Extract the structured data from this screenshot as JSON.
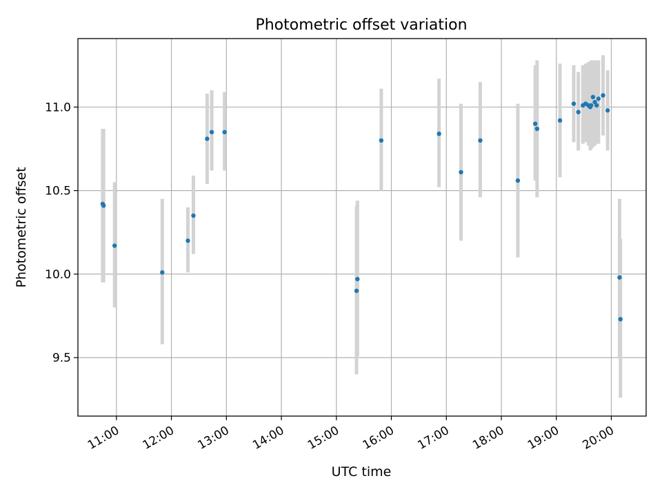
{
  "chart_data": {
    "type": "scatter",
    "title": "Photometric offset variation",
    "xlabel": "UTC time",
    "ylabel": "Photometric offset",
    "xlim": [
      "10:18",
      "20:38"
    ],
    "ylim": [
      9.15,
      11.41
    ],
    "grid": true,
    "x_ticks": [
      "11:00",
      "12:00",
      "13:00",
      "14:00",
      "15:00",
      "16:00",
      "17:00",
      "18:00",
      "19:00",
      "20:00"
    ],
    "y_ticks": [
      9.5,
      10.0,
      10.5,
      11.0
    ],
    "y_tick_labels": [
      "9.5",
      "10.0",
      "10.5",
      "11.0"
    ],
    "point_color": "#1f77b4",
    "errorbar_color": "#d3d3d3",
    "points": [
      {
        "x": "10:45",
        "y": 10.42,
        "ylo": 9.95,
        "yhi": 10.87
      },
      {
        "x": "10:46",
        "y": 10.41,
        "ylo": 9.95,
        "yhi": 10.87
      },
      {
        "x": "10:58",
        "y": 10.17,
        "ylo": 9.8,
        "yhi": 10.55
      },
      {
        "x": "11:50",
        "y": 10.01,
        "ylo": 9.58,
        "yhi": 10.45
      },
      {
        "x": "12:18",
        "y": 10.2,
        "ylo": 10.01,
        "yhi": 10.4
      },
      {
        "x": "12:24",
        "y": 10.35,
        "ylo": 10.12,
        "yhi": 10.59
      },
      {
        "x": "12:39",
        "y": 10.81,
        "ylo": 10.54,
        "yhi": 11.08
      },
      {
        "x": "12:44",
        "y": 10.85,
        "ylo": 10.62,
        "yhi": 11.1
      },
      {
        "x": "12:58",
        "y": 10.85,
        "ylo": 10.62,
        "yhi": 11.09
      },
      {
        "x": "15:22",
        "y": 9.9,
        "ylo": 9.4,
        "yhi": 10.41
      },
      {
        "x": "15:23",
        "y": 9.97,
        "ylo": 9.51,
        "yhi": 10.44
      },
      {
        "x": "15:49",
        "y": 10.8,
        "ylo": 10.5,
        "yhi": 11.11
      },
      {
        "x": "16:52",
        "y": 10.84,
        "ylo": 10.52,
        "yhi": 11.17
      },
      {
        "x": "17:16",
        "y": 10.61,
        "ylo": 10.2,
        "yhi": 11.02
      },
      {
        "x": "17:37",
        "y": 10.8,
        "ylo": 10.46,
        "yhi": 11.15
      },
      {
        "x": "18:18",
        "y": 10.56,
        "ylo": 10.1,
        "yhi": 11.02
      },
      {
        "x": "18:37",
        "y": 10.9,
        "ylo": 10.56,
        "yhi": 11.25
      },
      {
        "x": "18:39",
        "y": 10.87,
        "ylo": 10.46,
        "yhi": 11.28
      },
      {
        "x": "19:04",
        "y": 10.92,
        "ylo": 10.58,
        "yhi": 11.26
      },
      {
        "x": "19:19",
        "y": 11.02,
        "ylo": 10.79,
        "yhi": 11.25
      },
      {
        "x": "19:24",
        "y": 10.97,
        "ylo": 10.74,
        "yhi": 11.21
      },
      {
        "x": "19:29",
        "y": 11.01,
        "ylo": 10.78,
        "yhi": 11.25
      },
      {
        "x": "19:32",
        "y": 11.02,
        "ylo": 10.79,
        "yhi": 11.26
      },
      {
        "x": "19:35",
        "y": 11.01,
        "ylo": 10.77,
        "yhi": 11.27
      },
      {
        "x": "19:37",
        "y": 11.0,
        "ylo": 10.74,
        "yhi": 11.25
      },
      {
        "x": "19:38",
        "y": 11.01,
        "ylo": 10.75,
        "yhi": 11.28
      },
      {
        "x": "19:40",
        "y": 11.06,
        "ylo": 10.76,
        "yhi": 11.28
      },
      {
        "x": "19:42",
        "y": 11.03,
        "ylo": 10.77,
        "yhi": 11.28
      },
      {
        "x": "19:44",
        "y": 11.01,
        "ylo": 10.78,
        "yhi": 11.28
      },
      {
        "x": "19:46",
        "y": 11.05,
        "ylo": 10.78,
        "yhi": 11.28
      },
      {
        "x": "19:51",
        "y": 11.07,
        "ylo": 10.83,
        "yhi": 11.31
      },
      {
        "x": "19:56",
        "y": 10.98,
        "ylo": 10.74,
        "yhi": 11.22
      },
      {
        "x": "20:09",
        "y": 9.98,
        "ylo": 9.5,
        "yhi": 10.45
      },
      {
        "x": "20:10",
        "y": 9.73,
        "ylo": 9.26,
        "yhi": 10.21
      }
    ]
  }
}
